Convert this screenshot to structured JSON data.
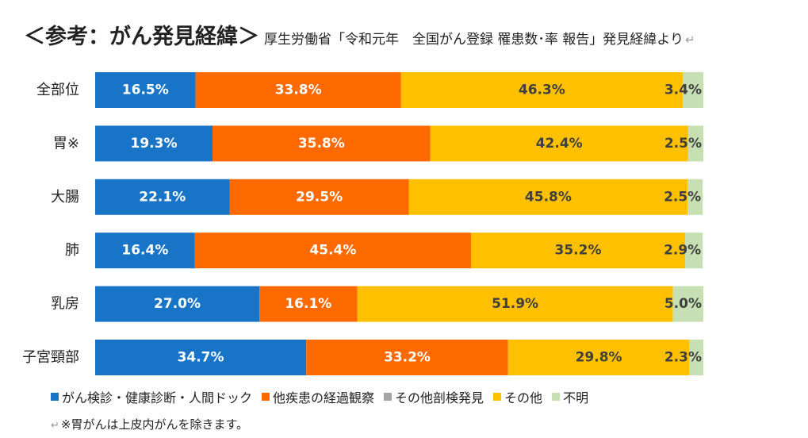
{
  "title": {
    "main": "＜参考：がん発見経緯＞",
    "subtitle": "厚生労働省「令和元年　全国がん登録 罹患数･率 報告」発見経緯より"
  },
  "footnote": "※胃がんは上皮内がんを除きます。",
  "chart_data": {
    "type": "bar",
    "orientation": "horizontal",
    "stacked": true,
    "percent": true,
    "categories": [
      "全部位",
      "胃※",
      "大腸",
      "肺",
      "乳房",
      "子宮頸部"
    ],
    "series": [
      {
        "name": "がん検診・健康診断・人間ドック",
        "color": "#1874C6",
        "values": [
          16.5,
          19.3,
          22.1,
          16.4,
          27.0,
          34.7
        ],
        "labels": [
          "16.5%",
          "19.3%",
          "22.1%",
          "16.4%",
          "27.0%",
          "34.7%"
        ]
      },
      {
        "name": "他疾患の経過観察",
        "color": "#FF6A00",
        "values": [
          33.8,
          35.8,
          29.5,
          45.4,
          16.1,
          33.2
        ],
        "labels": [
          "33.8%",
          "35.8%",
          "29.5%",
          "45.4%",
          "16.1%",
          "33.2%"
        ]
      },
      {
        "name": "その他剖検発見",
        "color": "#A5A5A5",
        "values": [
          0,
          0,
          0,
          0,
          0,
          0
        ],
        "labels": [
          "",
          "",
          "",
          "",
          "",
          ""
        ]
      },
      {
        "name": "その他",
        "color": "#FFC000",
        "values": [
          46.3,
          42.4,
          45.8,
          35.2,
          51.9,
          29.8
        ],
        "labels": [
          "46.3%",
          "42.4%",
          "45.8%",
          "35.2%",
          "51.9%",
          "29.8%"
        ]
      },
      {
        "name": "不明",
        "color": "#C6E0B4",
        "values": [
          3.4,
          2.5,
          2.5,
          2.9,
          5.0,
          2.3
        ],
        "labels": [
          "3.4%",
          "2.5%",
          "2.5%",
          "2.9%",
          "5.0%",
          "2.3%"
        ]
      }
    ],
    "xlim": [
      0,
      100
    ],
    "legend_position": "bottom",
    "grid": false
  }
}
